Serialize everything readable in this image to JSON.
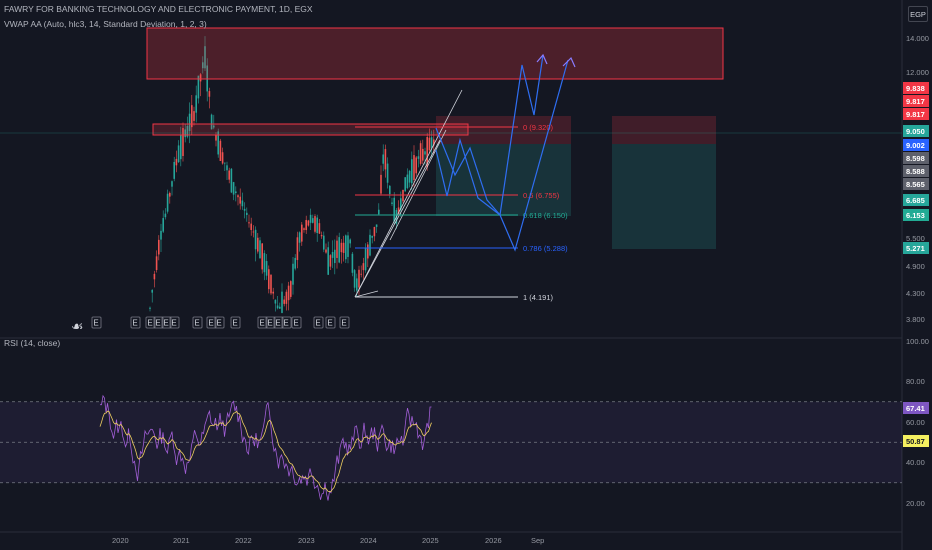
{
  "header": {
    "title": "FAWRY FOR BANKING TECHNOLOGY AND ELECTRONIC PAYMENT, 1D, EGX",
    "indicator": "VWAP AA (Auto, hlc3, 14, Standard Deviation, 1, 2, 3)",
    "currency": "EGP",
    "rsi_title": "RSI (14, close)"
  },
  "colors": {
    "background": "#141722",
    "candle_up": "#26a69a",
    "candle_down": "#ef5350",
    "rsi_line": "#a15ed6",
    "rsi_ma": "#f0d060",
    "projection": "#2f6ef2",
    "zone_red": "#f23645",
    "fib_red": "#f23645",
    "fib_green": "#22ab94",
    "fib_blue": "#2962ff",
    "fib_white": "#d1d4dc"
  },
  "chart_data": [
    {
      "type": "candlestick",
      "y_axis_ticks": [
        "14.000",
        "12.000",
        "9.838",
        "9.817",
        "9.817",
        "9.050",
        "9.002",
        "8.598",
        "8.588",
        "8.565",
        "6.685",
        "6.153",
        "5.500",
        "5.271",
        "4.900",
        "4.300",
        "3.800"
      ],
      "price_scale_values": [
        3.8,
        4.3,
        4.9,
        5.5,
        12.0,
        14.0
      ],
      "price_tags": [
        {
          "text": "9.838",
          "color": "#f23645"
        },
        {
          "text": "9.817",
          "color": "#f23645"
        },
        {
          "text": "9.817",
          "color": "#f23645"
        },
        {
          "text": "9.050",
          "color": "#26a69a"
        },
        {
          "text": "9.002",
          "color": "#2962ff"
        },
        {
          "text": "8.598",
          "color": "#5d606b"
        },
        {
          "text": "8.588",
          "color": "#5d606b"
        },
        {
          "text": "8.565",
          "color": "#5d606b"
        },
        {
          "text": "6.685",
          "color": "#26a69a"
        },
        {
          "text": "6.153",
          "color": "#22ab94"
        },
        {
          "text": "5.271",
          "color": "#26a69a"
        }
      ],
      "x_axis_labels": [
        "2020",
        "2021",
        "2022",
        "2023",
        "2024",
        "2025",
        "2026",
        "Sep"
      ],
      "fib_levels": [
        {
          "label": "0 (9.320)",
          "color": "#f23645"
        },
        {
          "label": "0.5 (6.755)",
          "color": "#f23645"
        },
        {
          "label": "0.618 (6.150)",
          "color": "#22ab94"
        },
        {
          "label": "0.786 (5.288)",
          "color": "#2962ff"
        },
        {
          "label": "1 (4.191)",
          "color": "#d1d4dc"
        }
      ],
      "event_markers": [
        "E",
        "E",
        "E",
        "E",
        "E",
        "E",
        "E",
        "E",
        "E",
        "E",
        "E",
        "E",
        "E",
        "E",
        "E",
        "E",
        "E",
        "E"
      ],
      "grid": false
    },
    {
      "type": "line",
      "name": "RSI",
      "y_axis_ticks": [
        "100.00",
        "80.00",
        "60.00",
        "40.00",
        "20.00"
      ],
      "ylim": [
        20,
        100
      ],
      "bands": [
        30,
        50,
        70
      ],
      "rsi_last": "67.41",
      "rsi_ma_last": "50.87"
    }
  ]
}
